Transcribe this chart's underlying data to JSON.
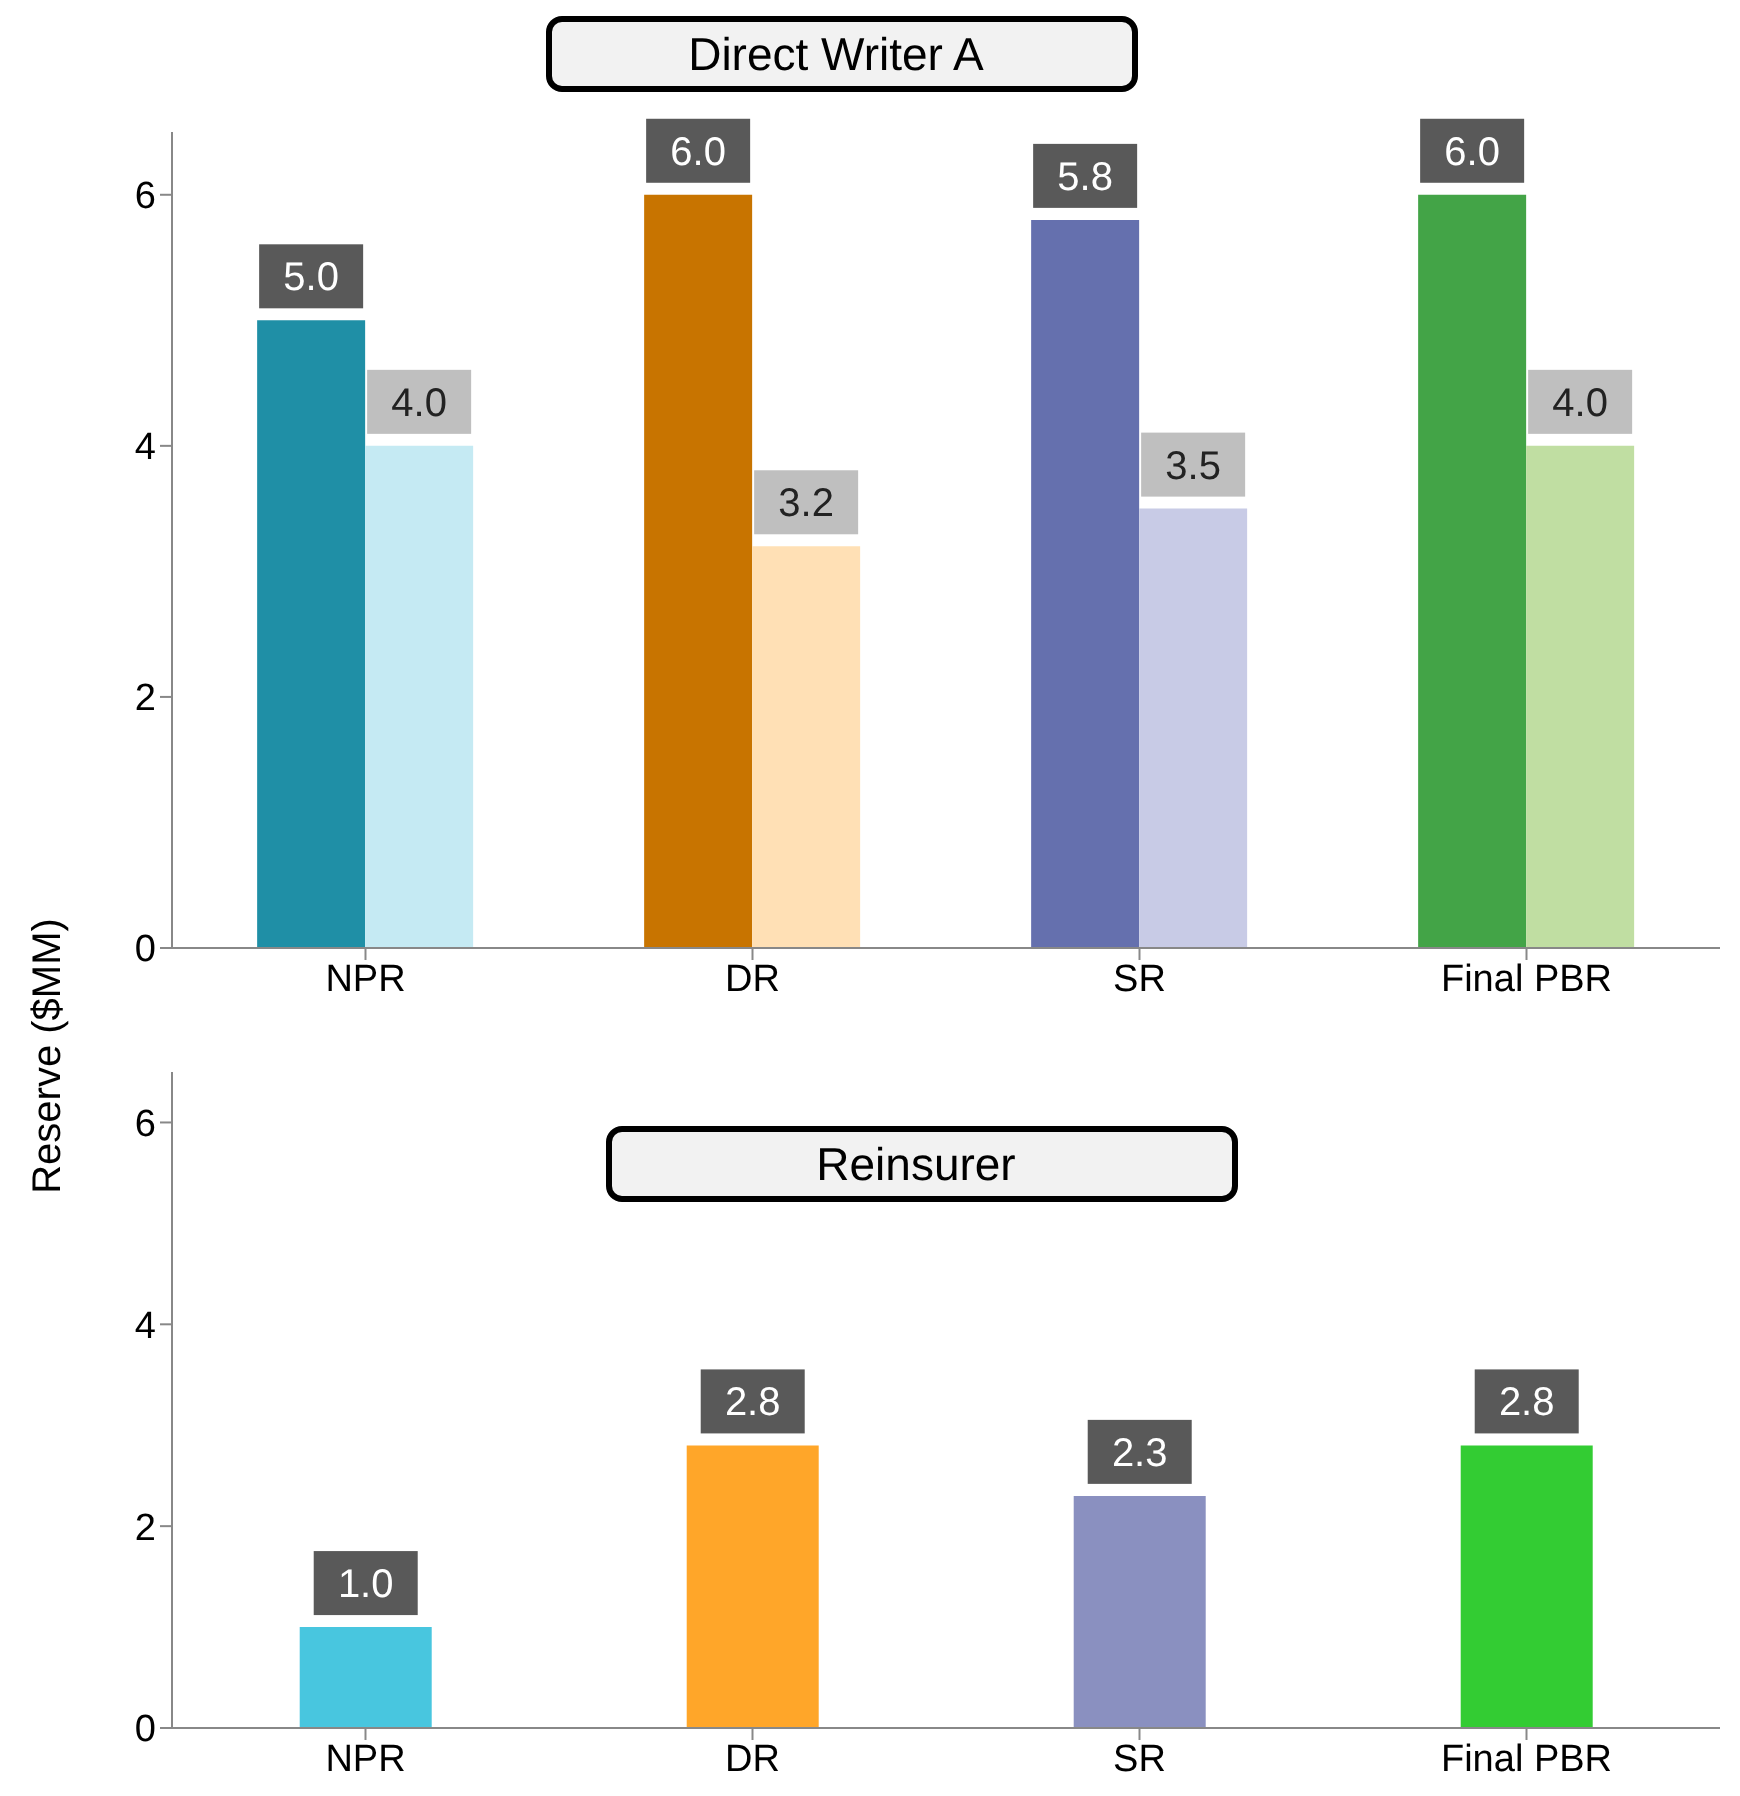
{
  "chart_data": [
    {
      "type": "bar",
      "title": "Direct Writer A",
      "ylabel": "Reserve ($MM)",
      "categories": [
        "NPR",
        "DR",
        "SR",
        "Final PBR"
      ],
      "series": [
        {
          "values": [
            5.0,
            6.0,
            5.8,
            6.0
          ],
          "value_labels": [
            "5.0",
            "6.0",
            "5.8",
            "6.0"
          ],
          "colors": [
            "#1f8fa6",
            "#c87400",
            "#6570ae",
            "#43a447"
          ]
        },
        {
          "values": [
            4.0,
            3.2,
            3.5,
            4.0
          ],
          "value_labels": [
            "4.0",
            "3.2",
            "3.5",
            "4.0"
          ],
          "colors": [
            "#c5eaf3",
            "#ffe0b5",
            "#c8cbe6",
            "#c0dea2"
          ]
        }
      ],
      "ylim": [
        0,
        6.5
      ],
      "yticks": [
        0,
        2,
        4,
        6
      ],
      "grid": false,
      "legend": false
    },
    {
      "type": "bar",
      "title": "Reinsurer",
      "categories": [
        "NPR",
        "DR",
        "SR",
        "Final PBR"
      ],
      "series": [
        {
          "values": [
            1.0,
            2.8,
            2.3,
            2.8
          ],
          "value_labels": [
            "1.0",
            "2.8",
            "2.3",
            "2.8"
          ],
          "colors": [
            "#48c6df",
            "#ffa629",
            "#8a90c0",
            "#33cc33"
          ]
        }
      ],
      "ylim": [
        0,
        6.5
      ],
      "yticks": [
        0,
        2,
        4,
        6
      ],
      "grid": false,
      "legend": false
    }
  ]
}
